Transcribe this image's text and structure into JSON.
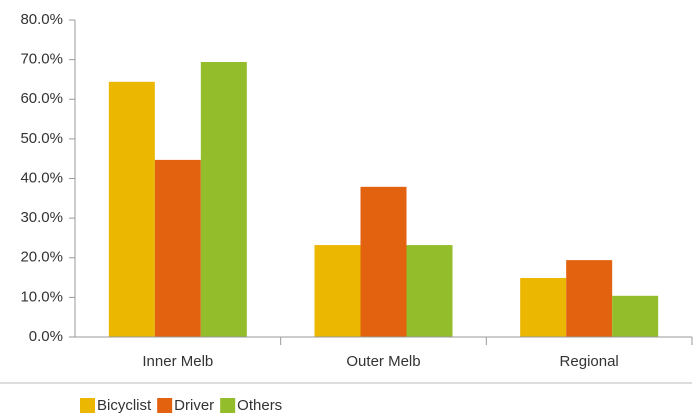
{
  "chart_data": {
    "type": "bar",
    "categories": [
      "Inner Melb",
      "Outer Melb",
      "Regional"
    ],
    "series": [
      {
        "name": "Bicyclist",
        "color": "#ebb700",
        "values": [
          64.4,
          23.2,
          14.9
        ]
      },
      {
        "name": "Driver",
        "color": "#e2620f",
        "values": [
          44.7,
          37.9,
          19.4
        ]
      },
      {
        "name": "Others",
        "color": "#93bd2a",
        "values": [
          69.4,
          23.2,
          10.4
        ]
      }
    ],
    "ylim": [
      0,
      80
    ],
    "yticks": [
      {
        "value": 0,
        "label": "0.0%"
      },
      {
        "value": 10,
        "label": "10.0%"
      },
      {
        "value": 20,
        "label": "20.0%"
      },
      {
        "value": 30,
        "label": "30.0%"
      },
      {
        "value": 40,
        "label": "40.0%"
      },
      {
        "value": 50,
        "label": "50.0%"
      },
      {
        "value": 60,
        "label": "60.0%"
      },
      {
        "value": 70,
        "label": "70.0%"
      },
      {
        "value": 80,
        "label": "80.0%"
      }
    ],
    "grid": false,
    "legend": "bottom-left"
  }
}
